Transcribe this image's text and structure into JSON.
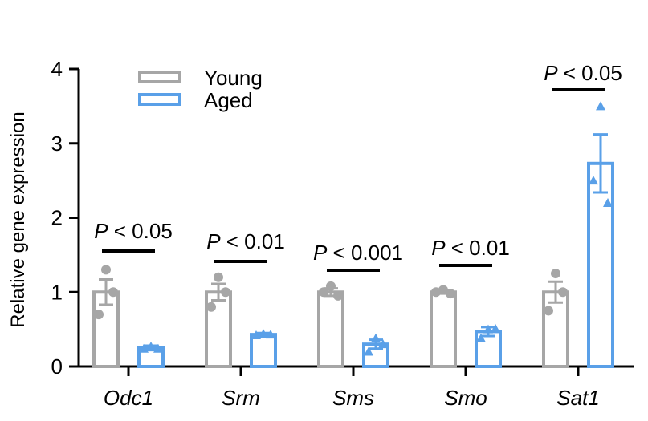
{
  "chart_data": {
    "type": "bar",
    "title": "",
    "xlabel": "",
    "ylabel": "Relative gene expression",
    "ylim": [
      0,
      4
    ],
    "yticks": [
      "0",
      "1",
      "2",
      "3",
      "4"
    ],
    "categories": [
      "Odc1",
      "Srm",
      "Sms",
      "Smo",
      "Sat1"
    ],
    "legend_position": "top-left",
    "series": [
      {
        "name": "Young",
        "color": "#a6a6a6",
        "marker": "circle",
        "values": [
          1.0,
          1.0,
          1.0,
          1.0,
          1.0
        ],
        "error": [
          0.17,
          0.11,
          0.05,
          0.02,
          0.14
        ],
        "points": [
          [
            1.3,
            0.7,
            1.0
          ],
          [
            1.2,
            0.8,
            1.0
          ],
          [
            1.08,
            1.0,
            0.95
          ],
          [
            1.03,
            1.0,
            0.98
          ],
          [
            1.25,
            0.75,
            1.0
          ]
        ]
      },
      {
        "name": "Aged",
        "color": "#5aa0e8",
        "marker": "triangle",
        "values": [
          0.25,
          0.43,
          0.3,
          0.47,
          2.73
        ],
        "error": [
          0.03,
          0.02,
          0.06,
          0.06,
          0.39
        ],
        "points": [
          [
            0.27,
            0.24,
            0.24
          ],
          [
            0.44,
            0.42,
            0.43
          ],
          [
            0.38,
            0.2,
            0.3
          ],
          [
            0.5,
            0.38,
            0.51
          ],
          [
            3.5,
            2.5,
            2.2
          ]
        ]
      }
    ],
    "annotations": [
      "P < 0.05",
      "P < 0.01",
      "P < 0.001",
      "P < 0.01",
      "P < 0.05"
    ]
  }
}
